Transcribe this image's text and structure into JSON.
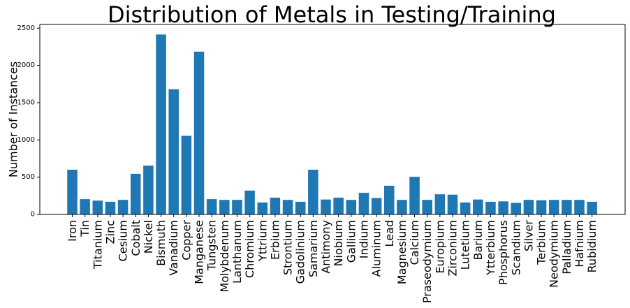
{
  "chart_data": {
    "type": "bar",
    "title": "Distribution of Metals in Testing/Training",
    "xlabel": "",
    "ylabel": "Number of Instances",
    "ylim": [
      0,
      2550
    ],
    "yticks": [
      0,
      500,
      1000,
      1500,
      2000,
      2500
    ],
    "grid": false,
    "bar_color": "#1f77b4",
    "categories": [
      "Iron",
      "Tin",
      "Titanium",
      "Zinc",
      "Cesium",
      "Cobalt",
      "Nickel",
      "Bismuth",
      "Vanadium",
      "Copper",
      "Manganese",
      "Tungsten",
      "Molybdenum",
      "Lanthanum",
      "Chromium",
      "Yttrium",
      "Erbium",
      "Strontium",
      "Gadolinium",
      "Samarium",
      "Antimony",
      "Niobium",
      "Gallium",
      "Indium",
      "Aluminum",
      "Lead",
      "Magnesium",
      "Calcium",
      "Praseodymium",
      "Europium",
      "Zirconium",
      "Lutetium",
      "Barium",
      "Ytterbium",
      "Phosphorus",
      "Scandium",
      "Silver",
      "Terbium",
      "Neodymium",
      "Palladium",
      "Hafnium",
      "Rubidium"
    ],
    "values": [
      600,
      205,
      185,
      170,
      195,
      545,
      655,
      2415,
      1680,
      1055,
      2185,
      205,
      195,
      195,
      320,
      160,
      225,
      195,
      170,
      600,
      200,
      225,
      195,
      290,
      220,
      385,
      195,
      505,
      195,
      270,
      265,
      160,
      200,
      170,
      175,
      155,
      195,
      190,
      195,
      195,
      195,
      170
    ]
  }
}
